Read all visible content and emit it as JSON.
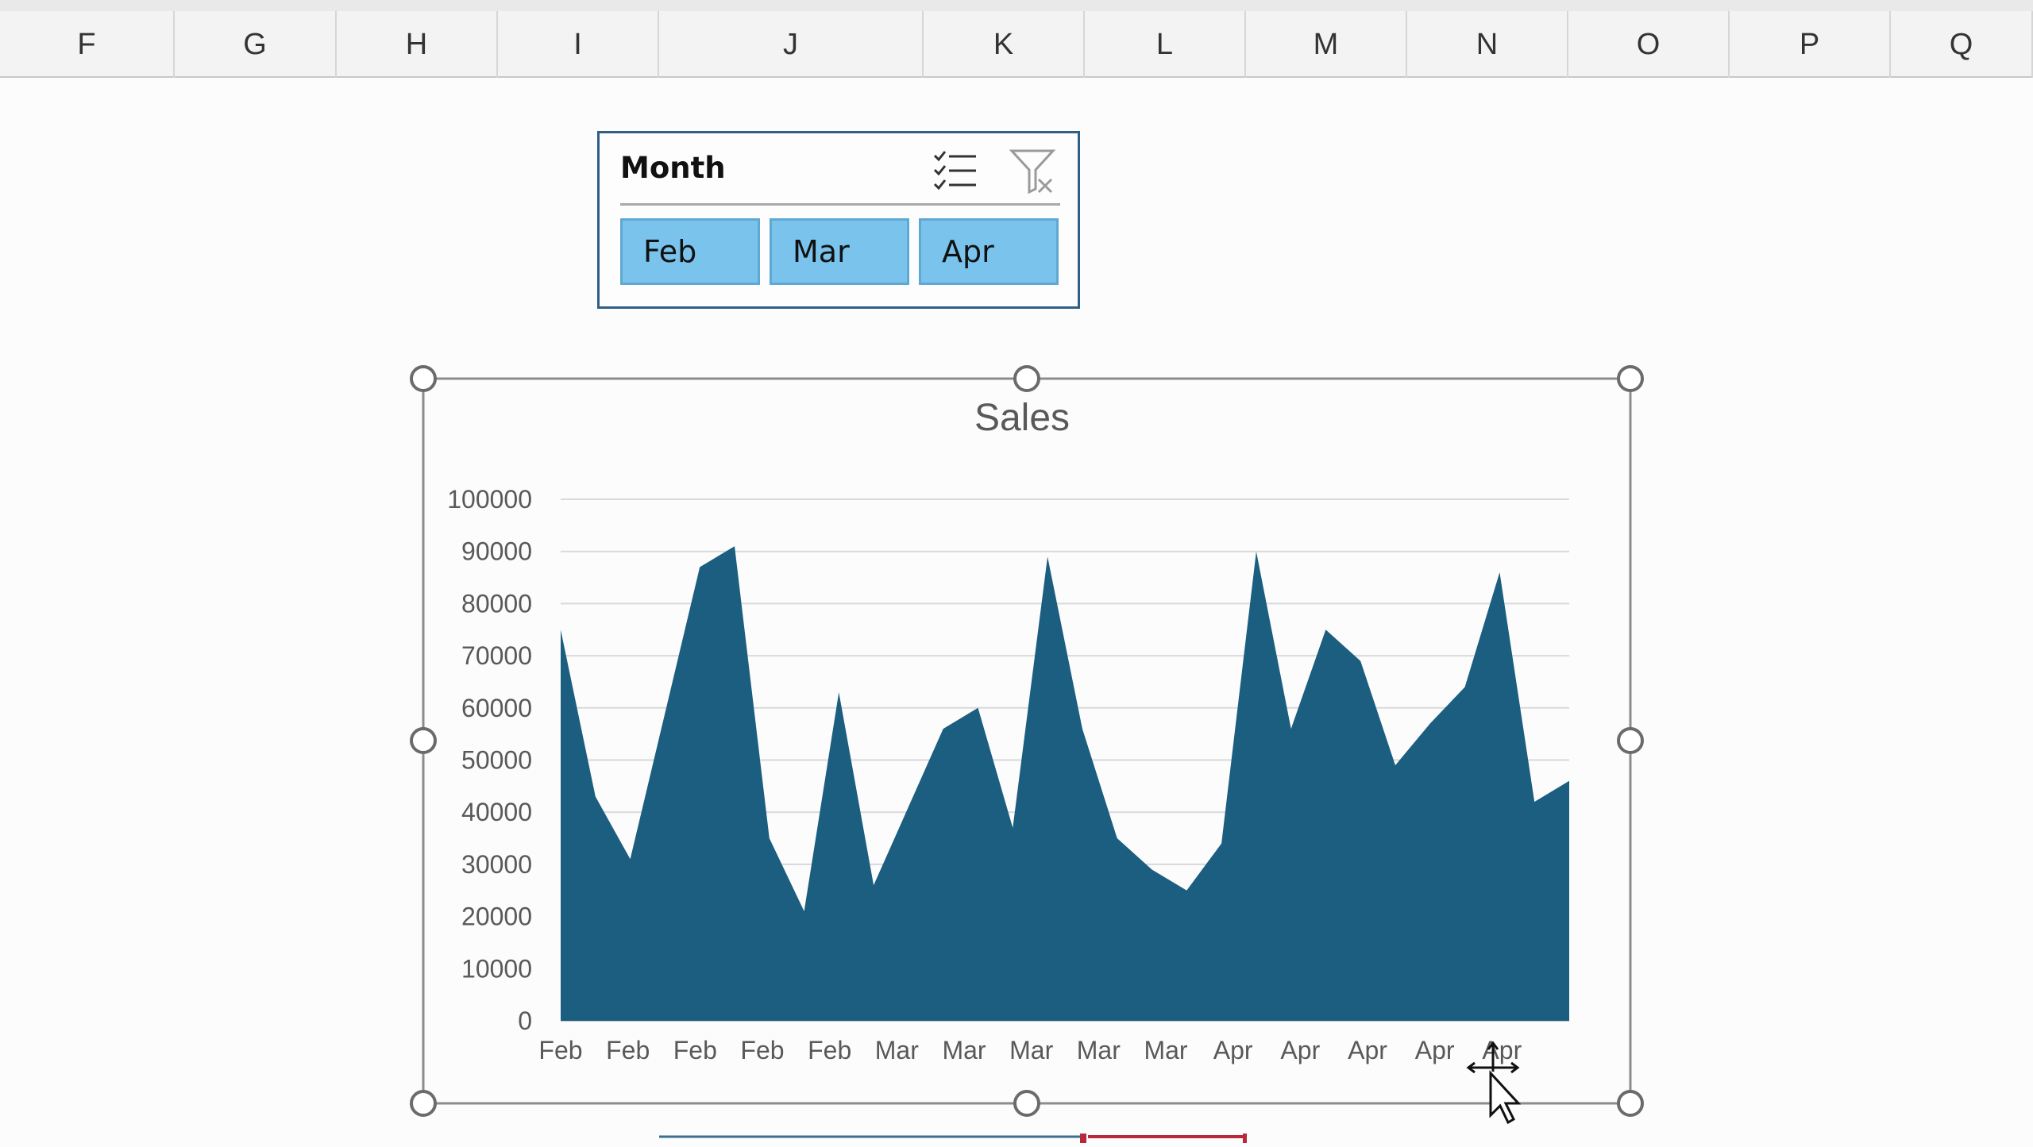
{
  "columns": [
    "F",
    "G",
    "H",
    "I",
    "J",
    "K",
    "L",
    "M",
    "N",
    "O",
    "P",
    "Q"
  ],
  "slicer": {
    "title": "Month",
    "multi_select_icon": "multi-select-icon",
    "clear_filter_icon": "clear-filter-icon",
    "items": [
      {
        "label": "Feb",
        "selected": true
      },
      {
        "label": "Mar",
        "selected": true
      },
      {
        "label": "Apr",
        "selected": true
      }
    ]
  },
  "chart_data": {
    "type": "area",
    "title": "Sales",
    "xlabel": "",
    "ylabel": "",
    "ylim": [
      0,
      100000
    ],
    "yticks": [
      0,
      10000,
      20000,
      30000,
      40000,
      50000,
      60000,
      70000,
      80000,
      90000,
      100000
    ],
    "x_tick_labels": [
      "Feb",
      "Feb",
      "Feb",
      "Feb",
      "Feb",
      "Mar",
      "Mar",
      "Mar",
      "Mar",
      "Mar",
      "Apr",
      "Apr",
      "Apr",
      "Apr",
      "Apr"
    ],
    "grid": true,
    "legend": "none",
    "color": "#1b5e80",
    "values": [
      75000,
      43000,
      31000,
      59000,
      87000,
      91000,
      35000,
      21000,
      63000,
      26000,
      41000,
      56000,
      60000,
      37000,
      89000,
      56000,
      35000,
      29000,
      25000,
      34000,
      90000,
      56000,
      75000,
      69000,
      49000,
      57000,
      64000,
      86000,
      42000,
      46000
    ]
  },
  "colors": {
    "area": "#1b5e80",
    "slicer_button": "#79c3ec",
    "slicer_border": "#2f5f86"
  }
}
